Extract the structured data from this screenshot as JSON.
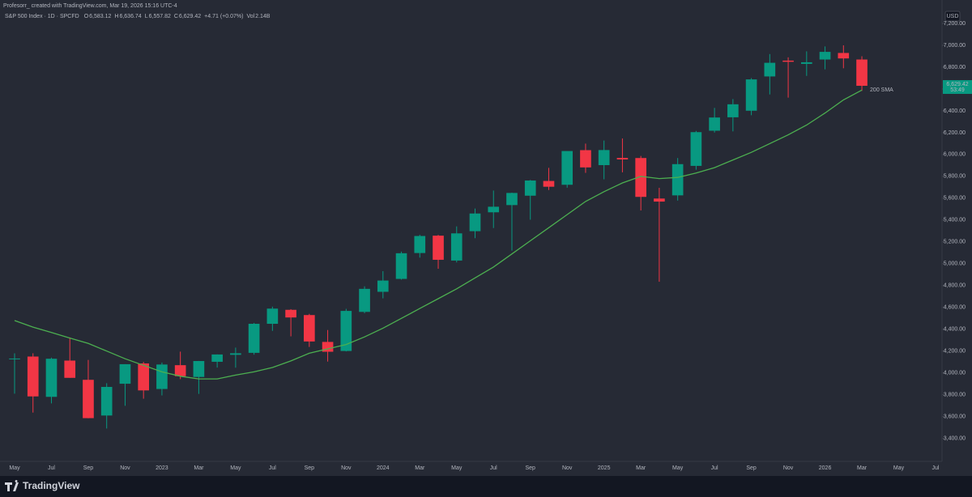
{
  "header": "Profesorr_ created with TradingView.com, Mar 19, 2026 15:16 UTC-4",
  "legend": {
    "symbol": "S&P 500 Index · 1D · SPCFD",
    "fields": [
      {
        "key": "O",
        "text": "6,583.12"
      },
      {
        "key": "H",
        "text": "6,636.74"
      },
      {
        "key": "L",
        "text": "6,557.82"
      },
      {
        "key": "C",
        "text": "6,629.42"
      }
    ],
    "change": "+4.71 (+0.07%)",
    "volume_key": "Vol",
    "volume": "2.14B"
  },
  "currency": "USD",
  "brand": "TradingView",
  "chart_data": {
    "type": "candlestick",
    "categories": [
      "May",
      null,
      "Jul",
      null,
      "Sep",
      null,
      "Nov",
      null,
      "2023",
      null,
      "Mar",
      null,
      "May",
      null,
      "Jul",
      null,
      "Sep",
      null,
      "Nov",
      null,
      "2024",
      null,
      "Mar",
      null,
      "May",
      null,
      "Jul",
      null,
      "Sep",
      null,
      "Nov",
      null,
      "2025",
      null,
      "Mar",
      null,
      "May",
      null,
      "Jul",
      null,
      "Sep",
      null,
      "Nov",
      null,
      "2026",
      null,
      "Mar",
      null,
      "May",
      null,
      "Jul"
    ],
    "open": [
      4130,
      4150,
      3781,
      4113,
      3937,
      3610,
      3901,
      4087,
      3853,
      4071,
      3963,
      4102,
      4166,
      4184,
      4450,
      4578,
      4530,
      4284,
      4201,
      4559,
      4743,
      4861,
      5098,
      5257,
      5029,
      5298,
      5471,
      5537,
      5623,
      5758,
      5723,
      6040,
      5903,
      5969,
      5968,
      5597,
      5626,
      5896,
      6218,
      6341,
      6401,
      6715,
      6860,
      6830,
      6870,
      6930,
      6870,
      null,
      null,
      null,
      null
    ],
    "high": [
      4180,
      4180,
      4140,
      4325,
      4119,
      3906,
      4080,
      4101,
      4095,
      4195,
      4110,
      4170,
      4232,
      4458,
      4607,
      4584,
      4541,
      4393,
      4587,
      4793,
      4932,
      5111,
      5265,
      5264,
      5342,
      5505,
      5670,
      5651,
      5767,
      5878,
      6025,
      6100,
      6128,
      6147,
      5987,
      5695,
      5968,
      6216,
      6427,
      6508,
      6700,
      6920,
      6890,
      6945,
      6990,
      7000,
      6900,
      null,
      null,
      null,
      null
    ],
    "low": [
      3810,
      3637,
      3721,
      3955,
      3585,
      3491,
      3699,
      3764,
      3794,
      3943,
      3808,
      4049,
      4048,
      4167,
      4385,
      4335,
      4238,
      4104,
      4197,
      4547,
      4683,
      4854,
      5056,
      4954,
      5012,
      5234,
      5327,
      5120,
      5403,
      5675,
      5696,
      5832,
      5773,
      5837,
      5488,
      4835,
      5578,
      5861,
      6201,
      6212,
      6360,
      6550,
      6521,
      6720,
      6780,
      6790,
      6583,
      null,
      null,
      null,
      null
    ],
    "close": [
      4132,
      3785,
      4130,
      3955,
      3586,
      3872,
      4080,
      3840,
      4077,
      3970,
      4109,
      4169,
      4180,
      4450,
      4589,
      4508,
      4288,
      4194,
      4568,
      4770,
      4846,
      5096,
      5254,
      5036,
      5278,
      5460,
      5522,
      5648,
      5762,
      5705,
      6032,
      5882,
      6041,
      5955,
      5612,
      5569,
      5912,
      6205,
      6339,
      6460,
      6688,
      6840,
      6849,
      6845,
      6940,
      6880,
      6629.42,
      null,
      null,
      null,
      null
    ],
    "up_color": "#089981",
    "down_color": "#f23645",
    "sma": {
      "name": "200 SMA",
      "color": "#4caf50",
      "values": [
        4480,
        4420,
        4370,
        4320,
        4270,
        4200,
        4130,
        4070,
        4010,
        3970,
        3945,
        3945,
        3980,
        4010,
        4050,
        4110,
        4180,
        4220,
        4260,
        4330,
        4410,
        4500,
        4590,
        4680,
        4770,
        4870,
        4970,
        5090,
        5210,
        5330,
        5450,
        5570,
        5660,
        5740,
        5800,
        5780,
        5790,
        5830,
        5880,
        5950,
        6020,
        6100,
        6180,
        6270,
        6380,
        6500,
        6590,
        null,
        null,
        null,
        null
      ]
    },
    "last_price": {
      "value": 6629.42,
      "label": "6,629.42"
    },
    "countdown": "53:49",
    "ylim": [
      3190,
      7415
    ],
    "yticks": [
      {
        "value": 3400,
        "label": "3,400.00"
      },
      {
        "value": 3600,
        "label": "3,600.00"
      },
      {
        "value": 3800,
        "label": "3,800.00"
      },
      {
        "value": 4000,
        "label": "4,000.00"
      },
      {
        "value": 4200,
        "label": "4,200.00"
      },
      {
        "value": 4400,
        "label": "4,400.00"
      },
      {
        "value": 4600,
        "label": "4,600.00"
      },
      {
        "value": 4800,
        "label": "4,800.00"
      },
      {
        "value": 5000,
        "label": "5,000.00"
      },
      {
        "value": 5200,
        "label": "5,200.00"
      },
      {
        "value": 5400,
        "label": "5,400.00"
      },
      {
        "value": 5600,
        "label": "5,600.00"
      },
      {
        "value": 5800,
        "label": "5,800.00"
      },
      {
        "value": 6000,
        "label": "6,000.00"
      },
      {
        "value": 6200,
        "label": "6,200.00"
      },
      {
        "value": 6400,
        "label": "6,400.00"
      },
      {
        "value": 6600,
        "label": "6,600.00"
      },
      {
        "value": 6800,
        "label": "6,800.00"
      },
      {
        "value": 7000,
        "label": "7,000.00"
      },
      {
        "value": 7200,
        "label": "7,200.00"
      }
    ],
    "grid": false
  }
}
